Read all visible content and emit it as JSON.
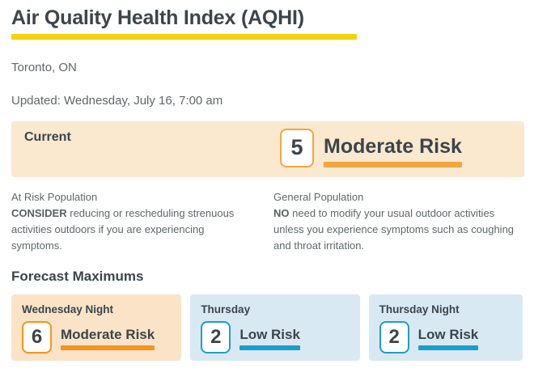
{
  "page": {
    "title": "Air Quality Health Index (AQHI)",
    "location": "Toronto, ON",
    "updated": "Updated: Wednesday, July 16, 7:00 am"
  },
  "current": {
    "label": "Current",
    "index": "5",
    "risk": "Moderate Risk"
  },
  "advice": {
    "at_risk": {
      "heading": "At Risk Population",
      "emphasis": "CONSIDER",
      "text": " reducing or rescheduling strenuous activities outdoors if you are experiencing symptoms."
    },
    "general": {
      "heading": "General Population",
      "emphasis": "NO",
      "text": " need to modify your usual outdoor activities unless you experience symptoms such as coughing and throat irritation."
    }
  },
  "forecast": {
    "heading": "Forecast Maximums",
    "cards": [
      {
        "period": "Wednesday Night",
        "index": "6",
        "risk": "Moderate Risk",
        "level": "moderate"
      },
      {
        "period": "Thursday",
        "index": "2",
        "risk": "Low Risk",
        "level": "low"
      },
      {
        "period": "Thursday Night",
        "index": "2",
        "risk": "Low Risk",
        "level": "low"
      }
    ]
  },
  "colors": {
    "heading_text": "#3B454C",
    "body_text": "#606669",
    "title_underline": "#F4D10E",
    "current_bg": "#FAE8CF",
    "current_accent": "#F1A73F",
    "moderate_bg": "#FAE3C7",
    "moderate_accent": "#F7941E",
    "low_bg": "#D9E9F3",
    "low_accent": "#1D9DC9"
  }
}
